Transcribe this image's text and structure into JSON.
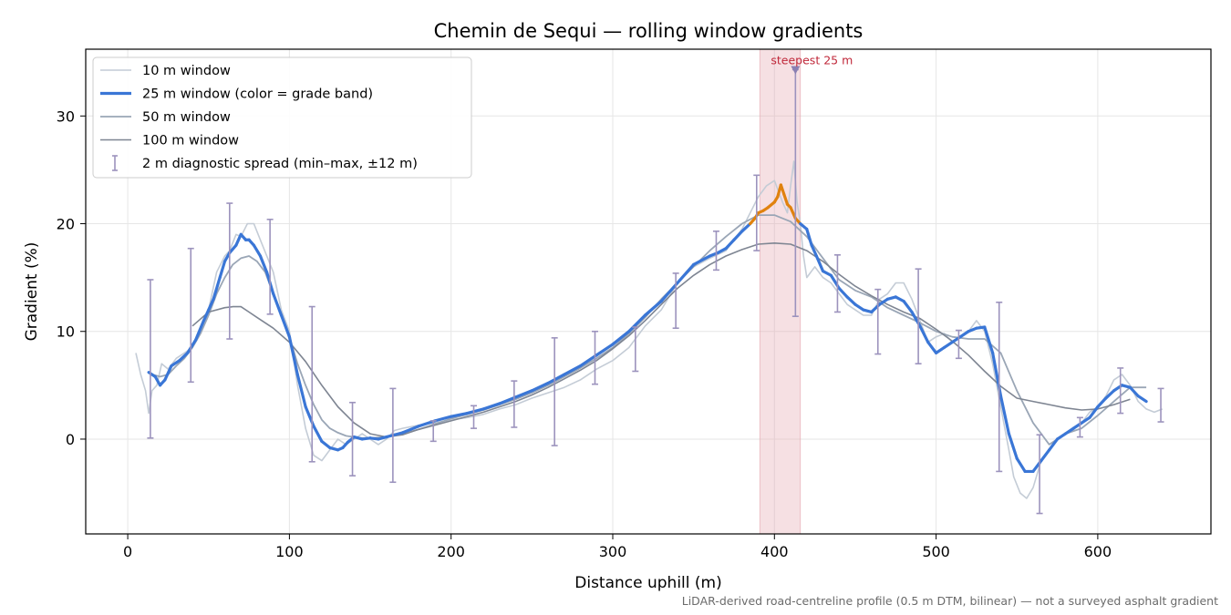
{
  "chart_data": {
    "type": "line",
    "title": "Chemin de Sequi — rolling window gradients",
    "xlabel": "Distance uphill (m)",
    "ylabel": "Gradient (%)",
    "xlim": [
      -26,
      670
    ],
    "ylim": [
      -8.8,
      36.2
    ],
    "x_ticks": [
      0,
      100,
      200,
      300,
      400,
      500,
      600
    ],
    "y_ticks": [
      0,
      10,
      20,
      30
    ],
    "grid": true,
    "legend_position": "top-left",
    "footnote": "LiDAR-derived road-centreline profile (0.5 m DTM, bilinear) — not a surveyed asphalt gradient",
    "highlight": {
      "x_start": 391,
      "x_end": 416,
      "color": "#e3a1aa"
    },
    "annotation": {
      "text": "steepest 25 m",
      "x": 413,
      "y": 34.3,
      "color": "#c0283a"
    },
    "grade_band_colors": {
      "below_20": "#3a76d6",
      "20_to_25": "#e0820e"
    },
    "legend": [
      {
        "label": "10 m window",
        "kind": "line",
        "color": "#c4ccd6",
        "width": 1.6
      },
      {
        "label": "25 m window (color = grade band)",
        "kind": "line",
        "color": "#3a76d6",
        "width": 3.2
      },
      {
        "label": "50 m window",
        "kind": "line",
        "color": "#9aa6b6",
        "width": 1.8
      },
      {
        "label": "100 m window",
        "kind": "line",
        "color": "#7e8592",
        "width": 1.6
      },
      {
        "label": "2 m diagnostic spread (min–max, ±12 m)",
        "kind": "errorbar",
        "color": "#9c93bd",
        "width": 1.6
      }
    ],
    "series": [
      {
        "name": "10 m window",
        "color": "#c4ccd6",
        "width": 1.6,
        "x": [
          5,
          8,
          11,
          13,
          15,
          18,
          21,
          25,
          30,
          35,
          40,
          45,
          50,
          55,
          60,
          63,
          67,
          70,
          74,
          78,
          82,
          86,
          90,
          95,
          100,
          105,
          110,
          115,
          120,
          125,
          130,
          135,
          140,
          145,
          150,
          155,
          160,
          165,
          170,
          180,
          190,
          200,
          210,
          220,
          230,
          240,
          250,
          260,
          270,
          280,
          290,
          300,
          310,
          320,
          330,
          340,
          350,
          360,
          370,
          380,
          385,
          390,
          395,
          400,
          405,
          408,
          410,
          412,
          414,
          416,
          418,
          420,
          425,
          430,
          435,
          440,
          445,
          450,
          455,
          460,
          465,
          470,
          475,
          480,
          485,
          490,
          495,
          500,
          505,
          510,
          515,
          520,
          525,
          530,
          535,
          540,
          545,
          548,
          552,
          556,
          560,
          565,
          570,
          575,
          580,
          585,
          590,
          595,
          600,
          605,
          610,
          615,
          620,
          625,
          630,
          635,
          640
        ],
        "y": [
          8,
          6,
          4.5,
          2.4,
          4.5,
          5,
          7,
          6.5,
          7.5,
          8,
          8.5,
          10,
          12,
          15.5,
          17,
          17.5,
          19,
          18.8,
          20,
          20,
          18.5,
          17,
          15.5,
          12,
          10,
          5,
          1,
          -1.5,
          -2,
          -1,
          0,
          -0.5,
          0,
          0.5,
          0,
          -0.5,
          0,
          0.8,
          1,
          1.3,
          1.5,
          1.8,
          2,
          2.3,
          2.8,
          3.2,
          3.8,
          4.3,
          4.8,
          5.5,
          6.5,
          7.3,
          8.5,
          10.5,
          12,
          14.5,
          16,
          16.8,
          17.5,
          19.5,
          21,
          22.5,
          23.5,
          24,
          22,
          21,
          23.5,
          25.8,
          22,
          20,
          17,
          15,
          16,
          15,
          14.5,
          13.5,
          12.5,
          12,
          11.5,
          11.5,
          13,
          13.5,
          14.5,
          14.5,
          13,
          11,
          9,
          9.5,
          9.8,
          9,
          9.5,
          10,
          11,
          10,
          7,
          3,
          -1,
          -3.5,
          -5,
          -5.5,
          -4.5,
          -2,
          -1,
          0,
          0.5,
          1,
          1.5,
          2.5,
          3,
          4,
          5.5,
          6,
          5,
          3.5,
          2.8,
          2.5,
          2.8
        ]
      },
      {
        "name": "50 m window",
        "color": "#9aa6b6",
        "width": 1.8,
        "x": [
          15,
          20,
          25,
          30,
          35,
          40,
          45,
          50,
          55,
          60,
          65,
          70,
          75,
          80,
          85,
          90,
          95,
          100,
          105,
          110,
          115,
          120,
          125,
          130,
          135,
          140,
          145,
          150,
          160,
          170,
          180,
          190,
          200,
          210,
          220,
          230,
          240,
          250,
          260,
          270,
          280,
          290,
          300,
          310,
          320,
          330,
          340,
          350,
          360,
          370,
          380,
          390,
          400,
          410,
          420,
          430,
          440,
          450,
          460,
          470,
          480,
          490,
          500,
          510,
          520,
          530,
          540,
          550,
          560,
          570,
          580,
          590,
          600,
          610,
          620,
          630
        ],
        "y": [
          6,
          5.8,
          6,
          6.8,
          7.5,
          8.5,
          9.8,
          11.5,
          13.5,
          15,
          16.2,
          16.8,
          17,
          16.5,
          15.5,
          13.5,
          11.5,
          9.5,
          7,
          5,
          3.2,
          1.8,
          1,
          0.6,
          0.3,
          0.2,
          0.1,
          0.1,
          0.2,
          0.5,
          0.9,
          1.4,
          1.9,
          2.3,
          2.7,
          3.2,
          3.7,
          4.3,
          5,
          5.8,
          6.6,
          7.5,
          8.5,
          9.8,
          11.3,
          13,
          14.5,
          16,
          17.5,
          18.8,
          20,
          20.8,
          20.8,
          20.2,
          18.8,
          16.8,
          14.8,
          13.8,
          13.2,
          12.2,
          11.5,
          10.8,
          10,
          9.5,
          9.3,
          9.3,
          8,
          4.5,
          1.5,
          -0.5,
          0.5,
          1,
          2.2,
          3.5,
          4.8,
          4.8
        ]
      },
      {
        "name": "100 m window",
        "color": "#7e8592",
        "width": 1.6,
        "x": [
          40,
          50,
          60,
          65,
          70,
          75,
          80,
          90,
          100,
          110,
          120,
          130,
          140,
          150,
          160,
          170,
          180,
          190,
          200,
          210,
          220,
          230,
          240,
          250,
          260,
          270,
          280,
          290,
          300,
          310,
          320,
          330,
          340,
          350,
          360,
          370,
          380,
          390,
          400,
          410,
          420,
          430,
          440,
          450,
          460,
          470,
          480,
          490,
          500,
          510,
          520,
          530,
          540,
          550,
          560,
          570,
          580,
          590,
          600,
          610,
          620
        ],
        "y": [
          10.5,
          11.8,
          12.2,
          12.3,
          12.3,
          11.8,
          11.3,
          10.3,
          9,
          7.2,
          5,
          3,
          1.5,
          0.5,
          0.2,
          0.4,
          0.9,
          1.3,
          1.7,
          2.1,
          2.5,
          3,
          3.5,
          4.1,
          4.8,
          5.6,
          6.4,
          7.3,
          8.4,
          9.6,
          11,
          12.5,
          14,
          15.2,
          16.2,
          17,
          17.6,
          18.1,
          18.2,
          18.1,
          17.5,
          16.5,
          15.3,
          14.2,
          13.3,
          12.5,
          11.8,
          11.2,
          10.2,
          9.1,
          7.8,
          6.3,
          4.9,
          3.8,
          3.5,
          3.2,
          2.9,
          2.7,
          2.8,
          3.2,
          3.7
        ]
      },
      {
        "name": "25 m window (color = grade band)",
        "color": "#3a76d6",
        "width": 3.2,
        "x": [
          13,
          17,
          20,
          23,
          27,
          32,
          37,
          42,
          47,
          50,
          53,
          57,
          60,
          63,
          67,
          70,
          73,
          75,
          78,
          82,
          86,
          90,
          95,
          100,
          105,
          110,
          115,
          120,
          125,
          130,
          133,
          136,
          140,
          145,
          150,
          155,
          160,
          165,
          170,
          175,
          180,
          190,
          200,
          210,
          220,
          230,
          240,
          250,
          260,
          270,
          280,
          290,
          300,
          310,
          320,
          330,
          340,
          350,
          360,
          365,
          370,
          375,
          380,
          385,
          388,
          390,
          393,
          396,
          400,
          402,
          404,
          406,
          408,
          410,
          413,
          416,
          420,
          423,
          426,
          430,
          435,
          440,
          445,
          450,
          455,
          460,
          465,
          470,
          475,
          480,
          485,
          490,
          495,
          500,
          505,
          510,
          515,
          520,
          525,
          530,
          535,
          540,
          545,
          550,
          555,
          560,
          565,
          570,
          575,
          580,
          585,
          590,
          595,
          600,
          605,
          610,
          615,
          620,
          625,
          630
        ],
        "y": [
          6.2,
          5.8,
          5,
          5.5,
          6.8,
          7.3,
          8,
          9.2,
          11,
          12,
          13,
          15,
          16.5,
          17.3,
          18,
          19,
          18.5,
          18.5,
          18,
          17,
          15.5,
          13.5,
          11.5,
          9.5,
          6,
          3,
          1.2,
          -0.2,
          -0.8,
          -1,
          -0.8,
          -0.3,
          0.2,
          0,
          0.1,
          0,
          0.2,
          0.4,
          0.6,
          0.9,
          1.2,
          1.7,
          2.1,
          2.4,
          2.8,
          3.3,
          3.9,
          4.5,
          5.2,
          6,
          6.8,
          7.8,
          8.8,
          10,
          11.5,
          12.8,
          14.5,
          16.2,
          17,
          17.3,
          17.7,
          18.5,
          19.3,
          20,
          20.5,
          21,
          21.2,
          21.5,
          22,
          22.5,
          23.6,
          22.7,
          21.8,
          21.5,
          20.5,
          20,
          19.5,
          18,
          17,
          15.6,
          15.2,
          14,
          13.2,
          12.5,
          12,
          11.8,
          12.5,
          13,
          13.2,
          12.8,
          11.8,
          10.5,
          9,
          8,
          8.5,
          9,
          9.5,
          10,
          10.3,
          10.4,
          8,
          4,
          0.5,
          -1.8,
          -3,
          -3,
          -2,
          -1,
          0,
          0.5,
          1,
          1.5,
          2,
          3,
          3.8,
          4.5,
          5,
          4.8,
          4,
          3.5
        ]
      }
    ],
    "errorbars": [
      {
        "x": 14,
        "low": 0.1,
        "high": 14.8
      },
      {
        "x": 39,
        "low": 5.3,
        "high": 17.7
      },
      {
        "x": 63,
        "low": 9.3,
        "high": 21.9
      },
      {
        "x": 88,
        "low": 11.6,
        "high": 20.4
      },
      {
        "x": 114,
        "low": -2.1,
        "high": 12.3
      },
      {
        "x": 139,
        "low": -3.4,
        "high": 3.4
      },
      {
        "x": 164,
        "low": -4.0,
        "high": 4.7
      },
      {
        "x": 189,
        "low": -0.2,
        "high": 1.7
      },
      {
        "x": 214,
        "low": 1.0,
        "high": 3.1
      },
      {
        "x": 239,
        "low": 1.1,
        "high": 5.4
      },
      {
        "x": 264,
        "low": -0.6,
        "high": 9.4
      },
      {
        "x": 289,
        "low": 5.1,
        "high": 10.0
      },
      {
        "x": 314,
        "low": 6.3,
        "high": 10.4
      },
      {
        "x": 339,
        "low": 10.3,
        "high": 15.4
      },
      {
        "x": 364,
        "low": 15.7,
        "high": 19.3
      },
      {
        "x": 389,
        "low": 17.5,
        "high": 24.5
      },
      {
        "x": 413,
        "low": 11.4,
        "high": 34.3
      },
      {
        "x": 439,
        "low": 11.8,
        "high": 17.1
      },
      {
        "x": 464,
        "low": 7.9,
        "high": 13.9
      },
      {
        "x": 489,
        "low": 7.0,
        "high": 15.8
      },
      {
        "x": 514,
        "low": 7.5,
        "high": 10.1
      },
      {
        "x": 539,
        "low": -3.0,
        "high": 12.7
      },
      {
        "x": 564,
        "low": -6.9,
        "high": 0.4
      },
      {
        "x": 589,
        "low": 0.2,
        "high": 2.0
      },
      {
        "x": 614,
        "low": 2.4,
        "high": 6.6
      },
      {
        "x": 639,
        "low": 1.6,
        "high": 4.7
      }
    ]
  }
}
